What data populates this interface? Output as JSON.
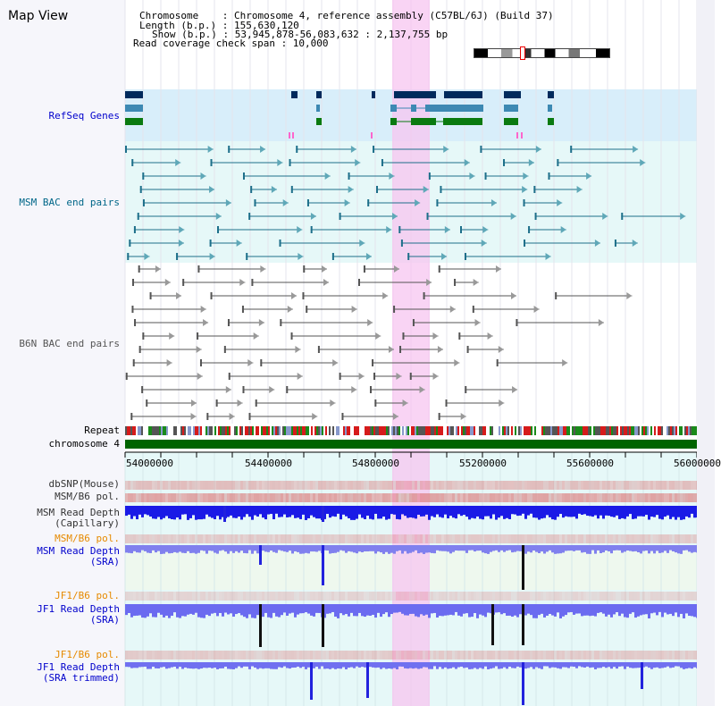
{
  "window": {
    "title": "Map View"
  },
  "info": {
    "chromosome": "Chromosome    : Chromosome 4, reference assembly (C57BL/6J) (Build 37)",
    "length": "Length (b.p.) : 155,630,120",
    "show": "Show (b.p.) : 53,945,878-56,083,632 : 2,137,755 bp",
    "coverage": "Read coverage check span : 10,000"
  },
  "tracks": {
    "refseq": "RefSeq Genes",
    "msm_bac": "MSM BAC end pairs",
    "b6n_bac": "B6N BAC end pairs",
    "repeat": "Repeat",
    "chromosome": "chromosome 4",
    "dbsnp": "dbSNP(Mouse)",
    "msm_b6_pol": "MSM/B6 pol.",
    "msm_depth_cap_1": "MSM Read Depth",
    "msm_depth_cap_2": "(Capillary)",
    "msm_b6_pol_2": "MSM/B6 pol.",
    "msm_depth_sra_1": "MSM Read Depth",
    "msm_depth_sra_2": "(SRA)",
    "jf1_b6_pol": "JF1/B6 pol.",
    "jf1_depth_sra_1": "JF1 Read Depth",
    "jf1_depth_sra_2": "(SRA)",
    "jf1_b6_pol_2": "JF1/B6 pol.",
    "jf1_depth_trim_1": "JF1 Read Depth",
    "jf1_depth_trim_2": "(SRA trimmed)"
  },
  "axis": {
    "ticks": [
      "54000000",
      "54400000",
      "54800000",
      "55200000",
      "55600000",
      "56000000"
    ]
  },
  "colors": {
    "refseq_label": "#0000cc",
    "msm_bac_label": "#006688",
    "b6n_bac_label": "#555555",
    "orange_label": "#e68a00",
    "highlight": "#f7c6f0",
    "chromosome_bar": "#006400"
  }
}
